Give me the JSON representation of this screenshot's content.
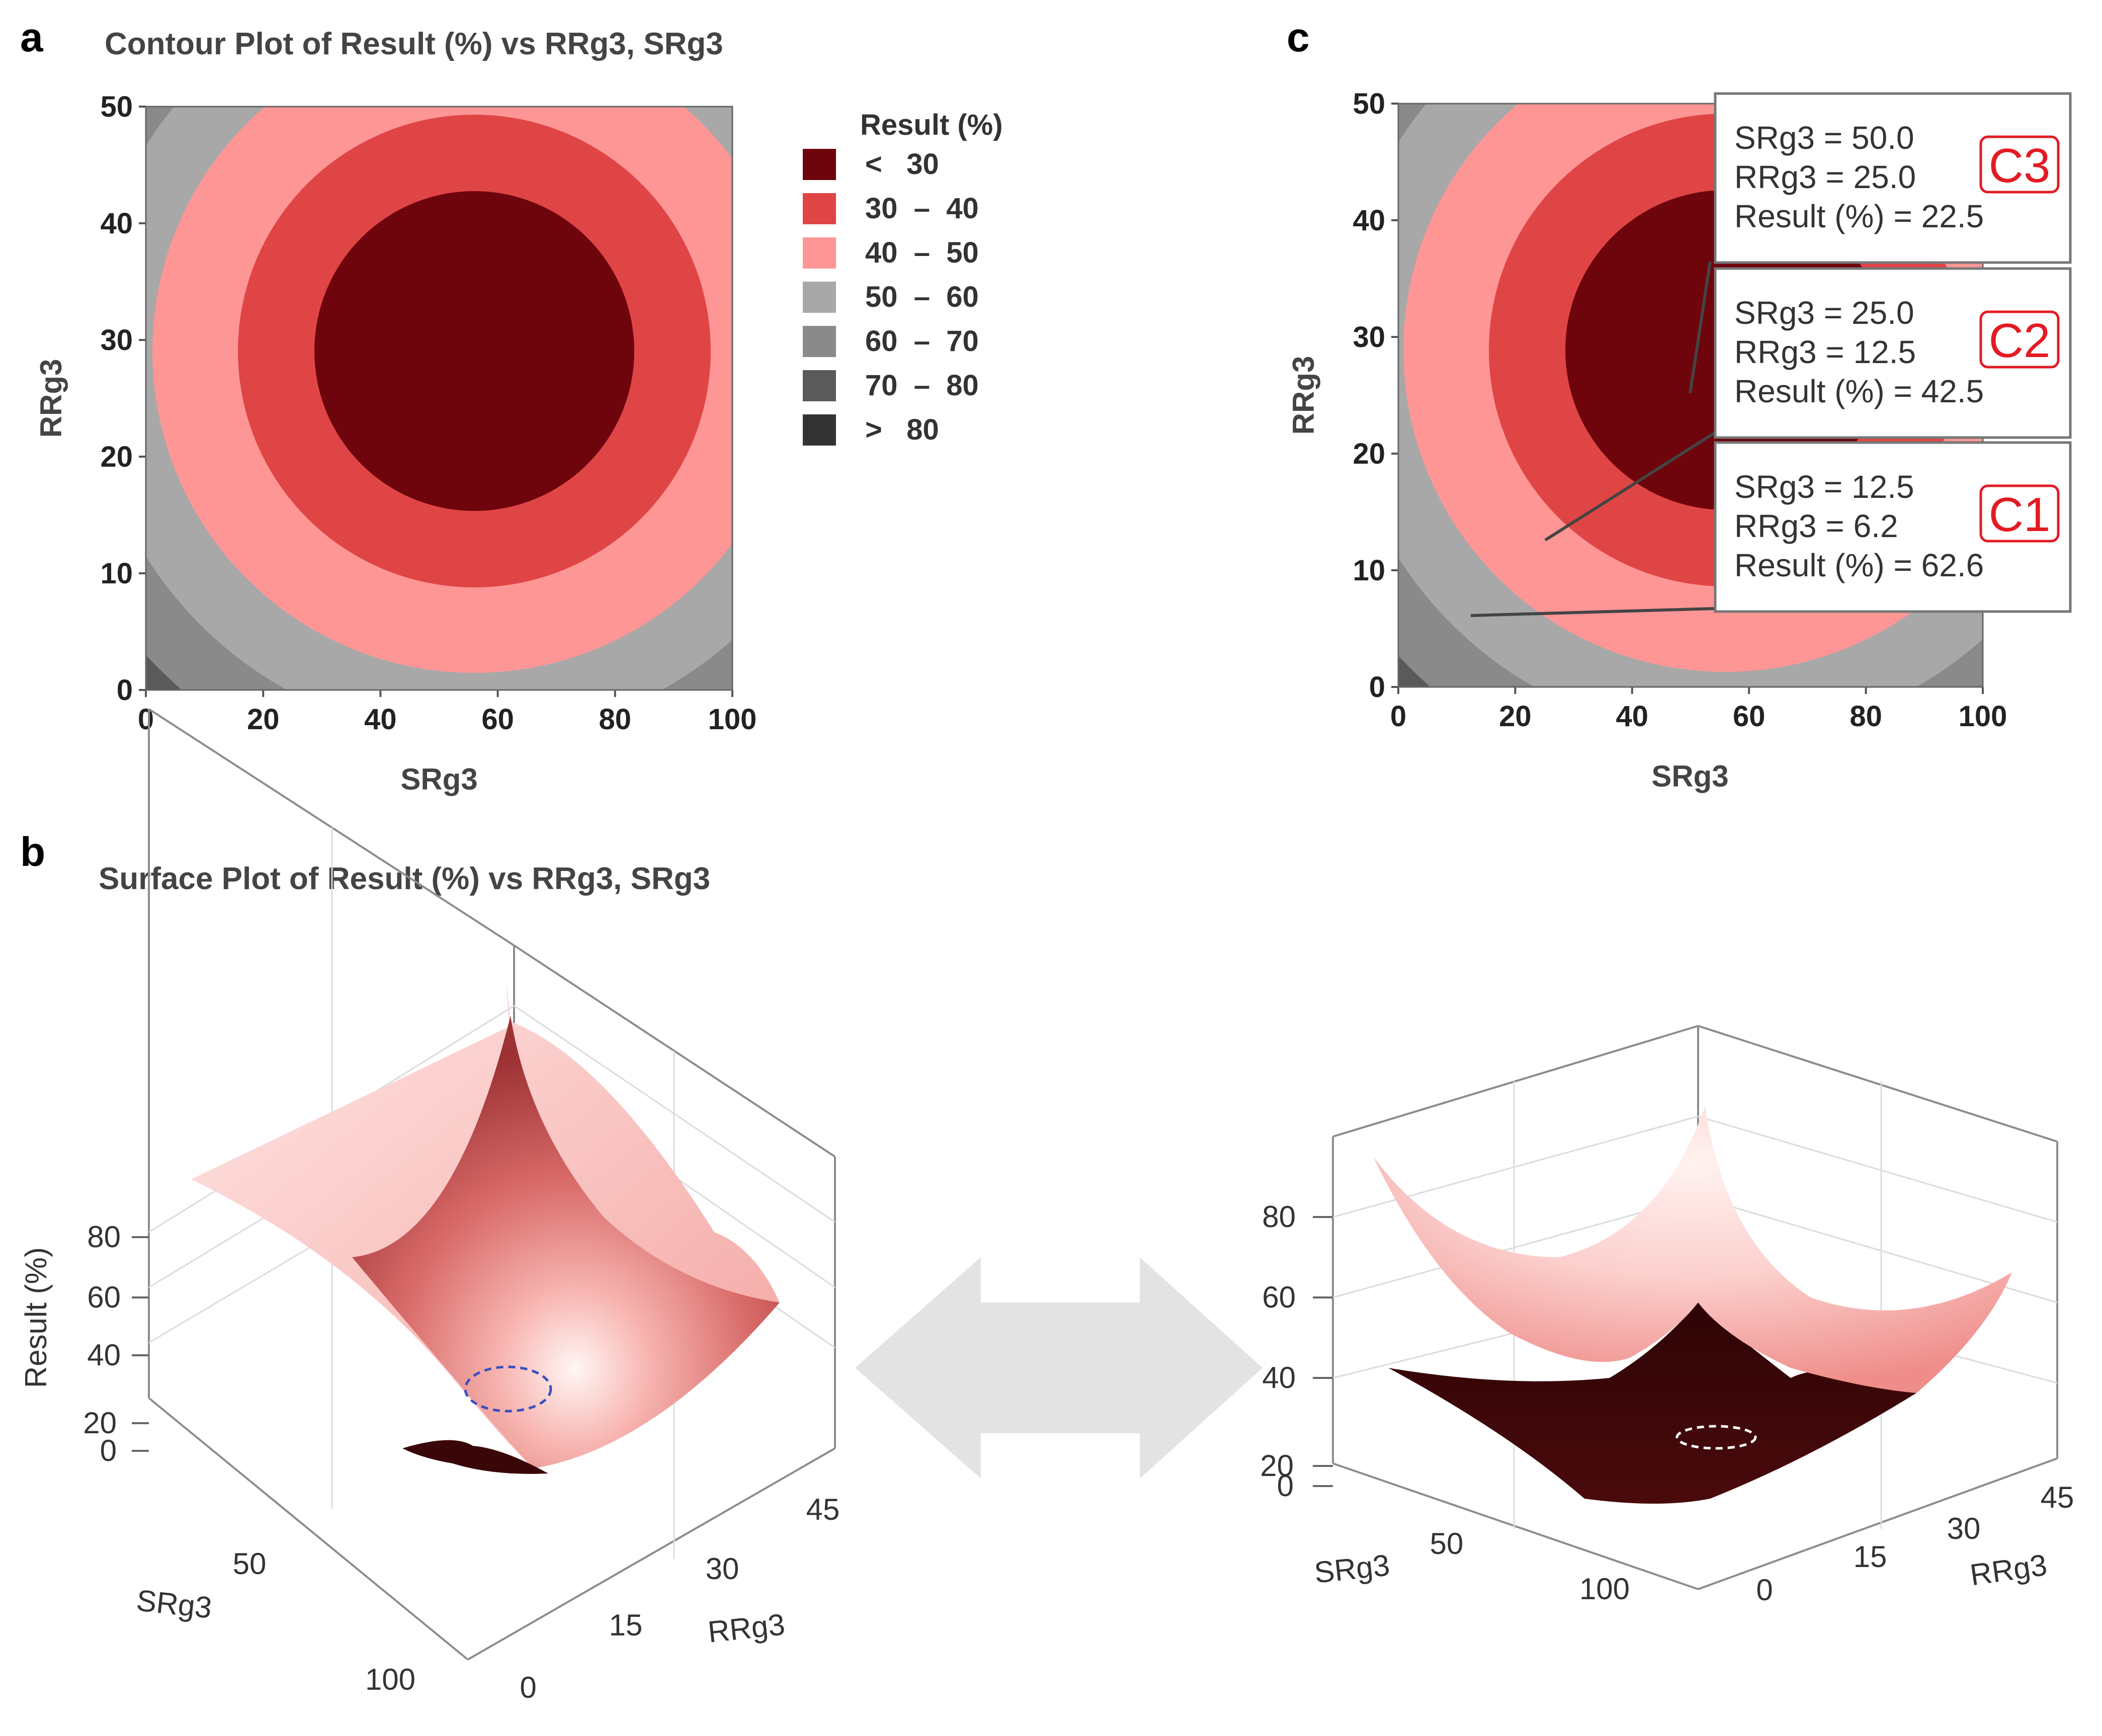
{
  "panels": {
    "a": {
      "letter": "a",
      "title": "Contour Plot of Result (%) vs RRg3, SRg3"
    },
    "b": {
      "letter": "b",
      "title": "Surface Plot of Result (%) vs RRg3, SRg3"
    },
    "c": {
      "letter": "c"
    }
  },
  "legend": {
    "title": "Result (%)",
    "items": [
      {
        "label": "<   30",
        "color": "#6e040c"
      },
      {
        "label": "30  –  40",
        "color": "#e04545"
      },
      {
        "label": "40  –  50",
        "color": "#fe9696"
      },
      {
        "label": "50  –  60",
        "color": "#a8a8a8"
      },
      {
        "label": "60  –  70",
        "color": "#8a8a8a"
      },
      {
        "label": "70  –  80",
        "color": "#5a5a5a"
      },
      {
        "label": ">   80",
        "color": "#333333"
      }
    ]
  },
  "callouts": [
    {
      "lines": [
        "SRg3 = 50.0",
        "RRg3 = 25.0",
        "Result (%) = 22.5"
      ],
      "tag": "C3"
    },
    {
      "lines": [
        "SRg3 = 25.0",
        "RRg3 = 12.5",
        "Result (%) = 42.5"
      ],
      "tag": "C2"
    },
    {
      "lines": [
        "SRg3 = 12.5",
        "RRg3 = 6.2",
        "Result (%) = 62.6"
      ],
      "tag": "C1"
    }
  ],
  "surface": {
    "zlabel": "Result (%)",
    "xlabel": "SRg3",
    "ylabel": "RRg3",
    "z_ticks": [
      "80",
      "60",
      "40",
      "20",
      "0"
    ],
    "x_ticks": [
      "50",
      "100"
    ],
    "y_ticks": [
      "45",
      "30",
      "15",
      "0"
    ],
    "right_x_ticks": [
      "50",
      "100"
    ],
    "right_y_ticks": [
      "45",
      "30",
      "15",
      "0"
    ],
    "right_z_ticks": [
      "80",
      "60",
      "40",
      "20",
      "0"
    ]
  },
  "chart_data": [
    {
      "type": "contour",
      "title": "Contour Plot of Result (%) vs RRg3, SRg3",
      "xlabel": "SRg3",
      "ylabel": "RRg3",
      "xlim": [
        0,
        100
      ],
      "ylim": [
        0,
        50
      ],
      "x_ticks": [
        0,
        20,
        40,
        60,
        80,
        100
      ],
      "y_ticks": [
        0,
        10,
        20,
        30,
        40,
        50
      ],
      "levels": [
        30,
        40,
        50,
        60,
        70,
        80
      ],
      "minimum": {
        "x": 56,
        "y": 28
      }
    },
    {
      "type": "contour",
      "xlabel": "SRg3",
      "ylabel": "RRg3",
      "xlim": [
        0,
        100
      ],
      "ylim": [
        0,
        50
      ],
      "x_ticks": [
        0,
        20,
        40,
        60,
        80,
        100
      ],
      "y_ticks": [
        0,
        10,
        20,
        30,
        40,
        50
      ],
      "points": [
        {
          "name": "C3",
          "x": 50.0,
          "y": 25.0,
          "value": 22.5
        },
        {
          "name": "C2",
          "x": 25.0,
          "y": 12.5,
          "value": 42.5
        },
        {
          "name": "C1",
          "x": 12.5,
          "y": 6.2,
          "value": 62.6
        }
      ]
    },
    {
      "type": "surface",
      "title": "Surface Plot of Result (%) vs RRg3, SRg3",
      "xlabel": "SRg3",
      "ylabel": "RRg3",
      "zlabel": "Result (%)",
      "xlim": [
        0,
        100
      ],
      "ylim": [
        0,
        50
      ],
      "zlim": [
        0,
        90
      ]
    }
  ]
}
